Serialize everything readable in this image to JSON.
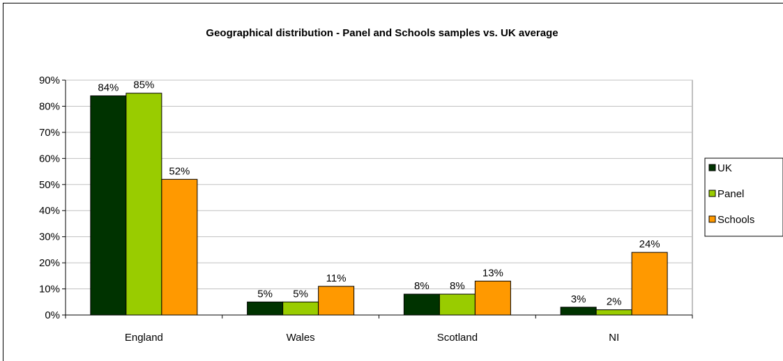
{
  "chart_data": {
    "type": "bar",
    "title": "Geographical distribution - Panel and Schools samples vs. UK average",
    "xlabel": "",
    "ylabel": "",
    "categories": [
      "England",
      "Wales",
      "Scotland",
      "NI"
    ],
    "series": [
      {
        "name": "UK",
        "values": [
          84,
          5,
          8,
          3
        ],
        "color": "#003300"
      },
      {
        "name": "Panel",
        "values": [
          85,
          5,
          8,
          2
        ],
        "color": "#99cc00"
      },
      {
        "name": "Schools",
        "values": [
          52,
          11,
          13,
          24
        ],
        "color": "#ff9900"
      }
    ],
    "data_labels": [
      [
        "84%",
        "5%",
        "8%",
        "3%"
      ],
      [
        "85%",
        "5%",
        "8%",
        "2%"
      ],
      [
        "52%",
        "11%",
        "13%",
        "24%"
      ]
    ],
    "ylim": [
      0,
      90
    ],
    "yticks": [
      "0%",
      "10%",
      "20%",
      "30%",
      "40%",
      "50%",
      "60%",
      "70%",
      "80%",
      "90%"
    ],
    "grid": true,
    "legend_position": "right",
    "plot_background": "#ffffff",
    "gridline_color": "#c0c0c0",
    "bar_outline_color": "#000000"
  }
}
